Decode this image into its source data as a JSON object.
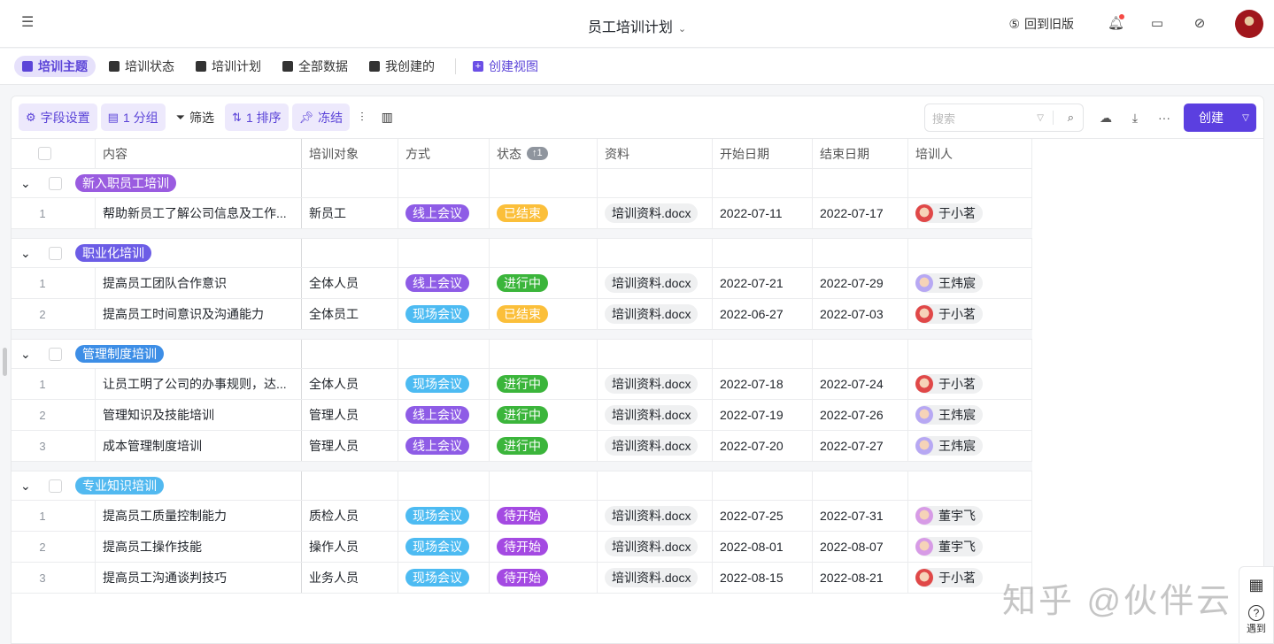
{
  "header": {
    "title": "员工培训计划",
    "back_old": "回到旧版"
  },
  "views": [
    {
      "label": "培训主题",
      "icon": "grid-icon",
      "active": true
    },
    {
      "label": "培训状态",
      "icon": "kanban-icon"
    },
    {
      "label": "培训计划",
      "icon": "gantt-icon"
    },
    {
      "label": "全部数据",
      "icon": "gallery-icon"
    },
    {
      "label": "我创建的",
      "icon": "grid-icon"
    }
  ],
  "create_view": "创建视图",
  "toolbar": {
    "fields": "字段设置",
    "group": "1 分组",
    "filter": "筛选",
    "sort": "1 排序",
    "freeze": "冻结",
    "search_placeholder": "搜索",
    "create": "创建"
  },
  "columns": [
    "内容",
    "培训对象",
    "方式",
    "状态",
    "资料",
    "开始日期",
    "结束日期",
    "培训人"
  ],
  "status_sort_badge": "↑1",
  "colors": {
    "线上会议": "#8e5ce6",
    "现场会议": "#4dbbf2",
    "已结束": "#fbbf3a",
    "进行中": "#3bb53b",
    "待开始": "#a44ae2",
    "于小茗": "#e04848",
    "王炜宸": "#b7a8f3",
    "董宇飞": "#d79be6"
  },
  "groups": [
    {
      "name": "新入职员工培训",
      "color": "#9a5ce0",
      "rows": [
        {
          "n": "1",
          "content": "帮助新员工了解公司信息及工作...",
          "target": "新员工",
          "mode": "线上会议",
          "status": "已结束",
          "file": "培训资料.docx",
          "start": "2022-07-11",
          "end": "2022-07-17",
          "trainer": "于小茗"
        }
      ]
    },
    {
      "name": "职业化培训",
      "color": "#6c5de6",
      "rows": [
        {
          "n": "1",
          "content": "提高员工团队合作意识",
          "target": "全体人员",
          "mode": "线上会议",
          "status": "进行中",
          "file": "培训资料.docx",
          "start": "2022-07-21",
          "end": "2022-07-29",
          "trainer": "王炜宸"
        },
        {
          "n": "2",
          "content": "提高员工时间意识及沟通能力",
          "target": "全体员工",
          "mode": "现场会议",
          "status": "已结束",
          "file": "培训资料.docx",
          "start": "2022-06-27",
          "end": "2022-07-03",
          "trainer": "于小茗"
        }
      ]
    },
    {
      "name": "管理制度培训",
      "color": "#3d8ee6",
      "rows": [
        {
          "n": "1",
          "content": "让员工明了公司的办事规则，达...",
          "target": "全体人员",
          "mode": "现场会议",
          "status": "进行中",
          "file": "培训资料.docx",
          "start": "2022-07-18",
          "end": "2022-07-24",
          "trainer": "于小茗"
        },
        {
          "n": "2",
          "content": "管理知识及技能培训",
          "target": "管理人员",
          "mode": "线上会议",
          "status": "进行中",
          "file": "培训资料.docx",
          "start": "2022-07-19",
          "end": "2022-07-26",
          "trainer": "王炜宸"
        },
        {
          "n": "3",
          "content": "成本管理制度培训",
          "target": "管理人员",
          "mode": "线上会议",
          "status": "进行中",
          "file": "培训资料.docx",
          "start": "2022-07-20",
          "end": "2022-07-27",
          "trainer": "王炜宸"
        }
      ]
    },
    {
      "name": "专业知识培训",
      "color": "#52b9f0",
      "rows": [
        {
          "n": "1",
          "content": "提高员工质量控制能力",
          "target": "质检人员",
          "mode": "现场会议",
          "status": "待开始",
          "file": "培训资料.docx",
          "start": "2022-07-25",
          "end": "2022-07-31",
          "trainer": "董宇飞"
        },
        {
          "n": "2",
          "content": "提高员工操作技能",
          "target": "操作人员",
          "mode": "现场会议",
          "status": "待开始",
          "file": "培训资料.docx",
          "start": "2022-08-01",
          "end": "2022-08-07",
          "trainer": "董宇飞"
        },
        {
          "n": "3",
          "content": "提高员工沟通谈判技巧",
          "target": "业务人员",
          "mode": "现场会议",
          "status": "待开始",
          "file": "培训资料.docx",
          "start": "2022-08-15",
          "end": "2022-08-21",
          "trainer": "于小茗"
        }
      ]
    }
  ],
  "watermark": "知乎 @伙伴云",
  "side": {
    "help": "遇到"
  }
}
